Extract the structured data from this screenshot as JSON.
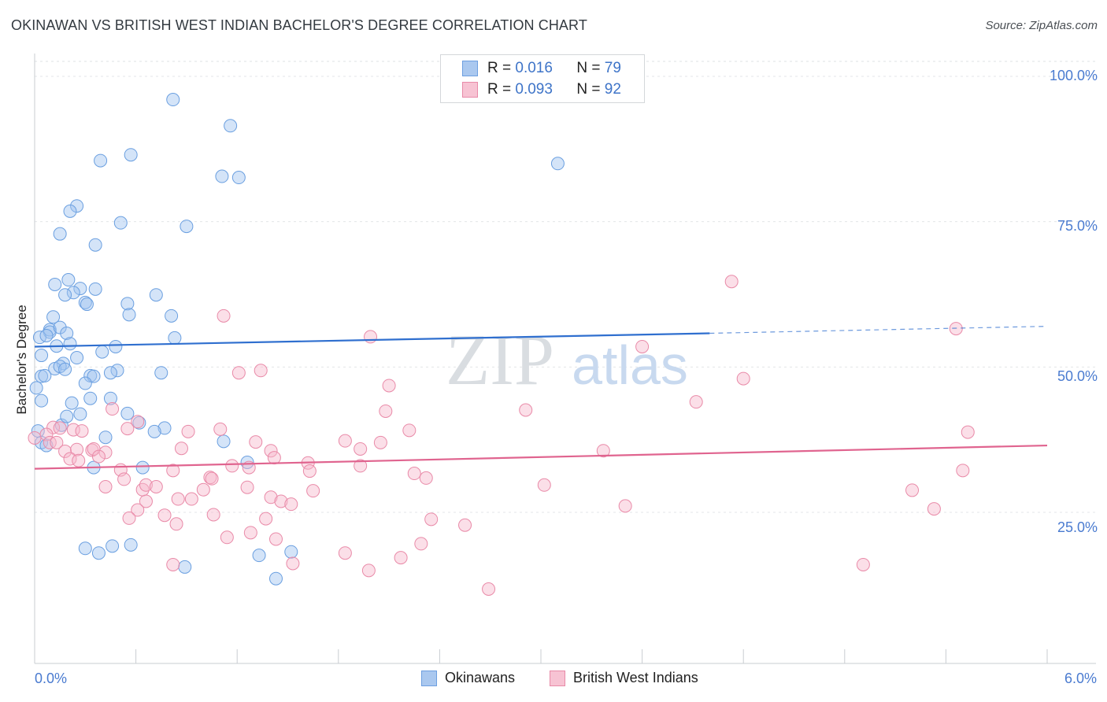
{
  "title": "OKINAWAN VS BRITISH WEST INDIAN BACHELOR'S DEGREE CORRELATION CHART",
  "source": "Source: ZipAtlas.com",
  "watermark": {
    "zip": "ZIP",
    "atlas": "atlas"
  },
  "legend_top": [
    {
      "r_label": "R =",
      "r_value": "0.016",
      "n_label": "N =",
      "n_value": "79",
      "color": "#aac8ef",
      "border": "#6d9fe0"
    },
    {
      "r_label": "R =",
      "r_value": "0.093",
      "n_label": "N =",
      "n_value": "92",
      "color": "#f7c3d3",
      "border": "#e88aa8"
    }
  ],
  "legend_bottom": [
    {
      "label": "Okinawans",
      "color": "#aac8ef",
      "border": "#6d9fe0"
    },
    {
      "label": "British West Indians",
      "color": "#f7c3d3",
      "border": "#e88aa8"
    }
  ],
  "chart_data": {
    "type": "scatter",
    "title": "OKINAWAN VS BRITISH WEST INDIAN BACHELOR'S DEGREE CORRELATION CHART",
    "xlabel": "",
    "ylabel": "Bachelor's Degree",
    "xlim": [
      0,
      6
    ],
    "ylim": [
      0,
      102
    ],
    "x_tick_labels": {
      "left": "0.0%",
      "right": "6.0%"
    },
    "y_ticks": [
      {
        "value": 100,
        "label": "100.0%"
      },
      {
        "value": 75,
        "label": "75.0%"
      },
      {
        "value": 50,
        "label": "50.0%"
      },
      {
        "value": 25,
        "label": "25.0%"
      }
    ],
    "series": [
      {
        "name": "Okinawans",
        "color": "#6a9fe0",
        "fill": "rgba(160,195,240,0.45)",
        "trend": {
          "x0": 0,
          "y0": 53.5,
          "x1": 4.0,
          "y1": 55.8,
          "dashed_to_x": 6.0,
          "dashed_to_y": 57.0,
          "color": "#2f6fcf"
        },
        "points": [
          [
            0.82,
            96
          ],
          [
            1.16,
            91.5
          ],
          [
            0.57,
            86.5
          ],
          [
            0.39,
            85.5
          ],
          [
            3.1,
            85
          ],
          [
            1.11,
            82.8
          ],
          [
            1.21,
            82.6
          ],
          [
            0.25,
            77.7
          ],
          [
            0.21,
            76.8
          ],
          [
            0.51,
            74.8
          ],
          [
            0.9,
            74.2
          ],
          [
            0.15,
            72.9
          ],
          [
            0.36,
            71
          ],
          [
            0.2,
            65
          ],
          [
            0.12,
            64.2
          ],
          [
            0.27,
            63.5
          ],
          [
            0.36,
            63.4
          ],
          [
            0.23,
            62.8
          ],
          [
            0.18,
            62.4
          ],
          [
            0.72,
            62.4
          ],
          [
            0.3,
            61.1
          ],
          [
            0.55,
            60.9
          ],
          [
            0.31,
            60.8
          ],
          [
            0.56,
            59
          ],
          [
            0.81,
            58.8
          ],
          [
            0.11,
            58.6
          ],
          [
            0.09,
            56.4
          ],
          [
            0.09,
            56
          ],
          [
            0.15,
            56.8
          ],
          [
            0.19,
            55.8
          ],
          [
            0.03,
            55.1
          ],
          [
            0.07,
            55.4
          ],
          [
            0.83,
            55.0
          ],
          [
            0.21,
            54.0
          ],
          [
            0.13,
            53.6
          ],
          [
            0.48,
            53.5
          ],
          [
            0.4,
            52.6
          ],
          [
            0.04,
            52.0
          ],
          [
            0.25,
            51.6
          ],
          [
            0.17,
            50.6
          ],
          [
            0.12,
            49.7
          ],
          [
            0.15,
            50.1
          ],
          [
            0.18,
            49.6
          ],
          [
            0.49,
            49.4
          ],
          [
            0.45,
            49.0
          ],
          [
            0.75,
            49.0
          ],
          [
            0.33,
            48.5
          ],
          [
            0.35,
            48.4
          ],
          [
            0.04,
            48.4
          ],
          [
            0.06,
            48.5
          ],
          [
            0.3,
            47.2
          ],
          [
            0.01,
            46.4
          ],
          [
            0.45,
            44.6
          ],
          [
            0.33,
            44.6
          ],
          [
            0.22,
            43.8
          ],
          [
            0.04,
            44.2
          ],
          [
            0.27,
            41.9
          ],
          [
            0.77,
            39.5
          ],
          [
            0.71,
            38.9
          ],
          [
            0.42,
            37.9
          ],
          [
            1.12,
            37.2
          ],
          [
            1.26,
            33.6
          ],
          [
            0.35,
            32.7
          ],
          [
            0.64,
            32.7
          ],
          [
            0.3,
            18.8
          ],
          [
            0.38,
            18.0
          ],
          [
            0.46,
            19.2
          ],
          [
            0.57,
            19.4
          ],
          [
            1.33,
            17.6
          ],
          [
            1.52,
            18.2
          ],
          [
            0.89,
            15.6
          ],
          [
            1.43,
            13.6
          ],
          [
            0.02,
            39.0
          ],
          [
            0.04,
            37.0
          ],
          [
            0.07,
            36.5
          ],
          [
            0.16,
            40.0
          ],
          [
            0.19,
            41.5
          ],
          [
            0.55,
            42.0
          ],
          [
            0.62,
            40.4
          ]
        ]
      },
      {
        "name": "British West Indians",
        "color": "#e98aa8",
        "fill": "rgba(246,184,204,0.45)",
        "trend": {
          "x0": 0,
          "y0": 32.5,
          "x1": 6.0,
          "y1": 36.5,
          "color": "#e0648f"
        },
        "points": [
          [
            4.13,
            64.7
          ],
          [
            5.46,
            56.6
          ],
          [
            1.12,
            58.8
          ],
          [
            1.99,
            55.2
          ],
          [
            3.6,
            53.5
          ],
          [
            1.34,
            49.4
          ],
          [
            1.21,
            49.0
          ],
          [
            2.1,
            46.8
          ],
          [
            4.2,
            48.0
          ],
          [
            2.08,
            42.4
          ],
          [
            2.91,
            42.6
          ],
          [
            3.92,
            44.0
          ],
          [
            0.11,
            39.6
          ],
          [
            0.15,
            39.5
          ],
          [
            0.23,
            39.2
          ],
          [
            0.28,
            39.0
          ],
          [
            0.46,
            42.8
          ],
          [
            0.55,
            39.4
          ],
          [
            0.61,
            40.6
          ],
          [
            0.91,
            38.9
          ],
          [
            1.1,
            39.3
          ],
          [
            1.84,
            37.3
          ],
          [
            2.22,
            39.1
          ],
          [
            5.53,
            38.8
          ],
          [
            0.07,
            38.4
          ],
          [
            0.09,
            37.0
          ],
          [
            0.13,
            37.0
          ],
          [
            0.18,
            35.5
          ],
          [
            0.25,
            35.8
          ],
          [
            0.34,
            35.7
          ],
          [
            0.35,
            35.9
          ],
          [
            0.42,
            35.3
          ],
          [
            0.87,
            36.0
          ],
          [
            1.31,
            37.1
          ],
          [
            1.4,
            35.6
          ],
          [
            1.42,
            34.4
          ],
          [
            2.05,
            37.0
          ],
          [
            1.93,
            35.9
          ],
          [
            3.37,
            35.6
          ],
          [
            0.21,
            34.2
          ],
          [
            0.26,
            33.9
          ],
          [
            0.38,
            34.6
          ],
          [
            0.51,
            32.3
          ],
          [
            0.82,
            32.2
          ],
          [
            1.04,
            31.0
          ],
          [
            1.17,
            33.0
          ],
          [
            1.27,
            32.7
          ],
          [
            1.62,
            33.5
          ],
          [
            1.63,
            32.1
          ],
          [
            1.93,
            33.0
          ],
          [
            2.25,
            31.7
          ],
          [
            2.32,
            30.9
          ],
          [
            3.02,
            29.7
          ],
          [
            5.5,
            32.2
          ],
          [
            0.42,
            29.4
          ],
          [
            0.53,
            30.7
          ],
          [
            0.64,
            28.9
          ],
          [
            0.66,
            29.7
          ],
          [
            0.72,
            29.4
          ],
          [
            0.66,
            26.9
          ],
          [
            1.0,
            28.9
          ],
          [
            1.05,
            30.8
          ],
          [
            1.26,
            29.3
          ],
          [
            1.4,
            27.6
          ],
          [
            1.46,
            26.9
          ],
          [
            1.65,
            28.7
          ],
          [
            0.85,
            27.3
          ],
          [
            0.93,
            27.3
          ],
          [
            0.61,
            25.4
          ],
          [
            0.77,
            24.5
          ],
          [
            0.56,
            24.0
          ],
          [
            0.84,
            23.0
          ],
          [
            1.06,
            24.6
          ],
          [
            1.37,
            23.9
          ],
          [
            1.52,
            26.4
          ],
          [
            2.35,
            23.8
          ],
          [
            2.55,
            22.8
          ],
          [
            3.5,
            26.1
          ],
          [
            5.2,
            28.8
          ],
          [
            5.33,
            25.6
          ],
          [
            1.14,
            20.7
          ],
          [
            1.28,
            21.5
          ],
          [
            1.43,
            20.4
          ],
          [
            2.29,
            19.6
          ],
          [
            1.84,
            18.0
          ],
          [
            2.17,
            17.2
          ],
          [
            0.82,
            16.0
          ],
          [
            1.53,
            16.2
          ],
          [
            1.98,
            15.0
          ],
          [
            4.91,
            16.0
          ],
          [
            2.69,
            11.8
          ],
          [
            0.0,
            37.8
          ]
        ]
      }
    ]
  }
}
